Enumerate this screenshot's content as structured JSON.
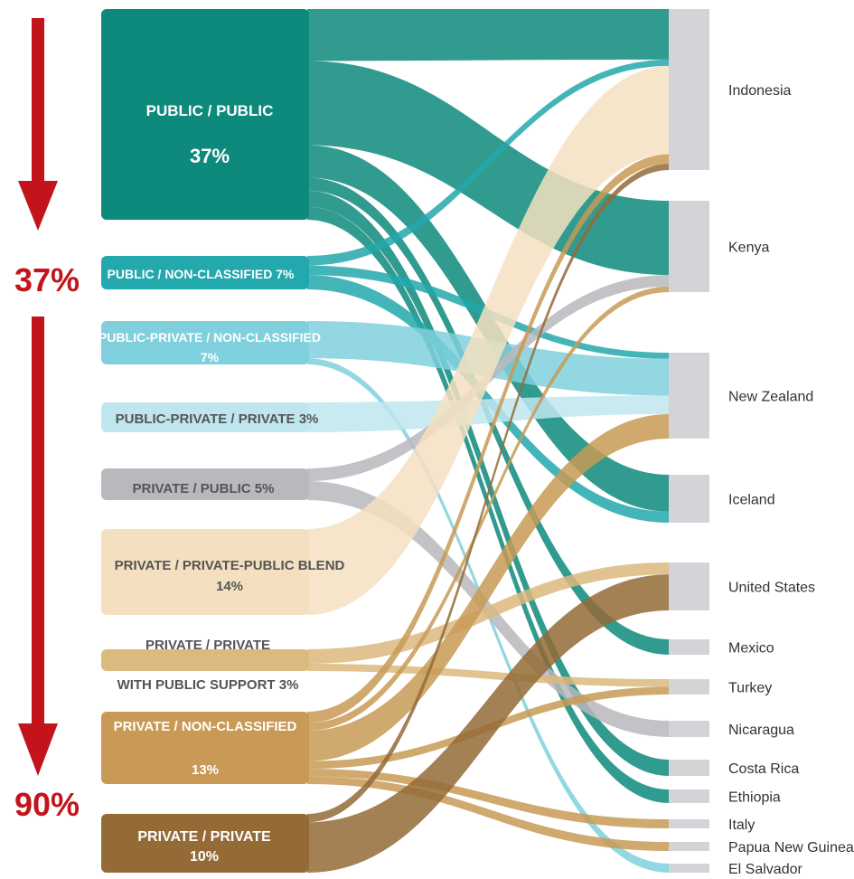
{
  "colors": {
    "public_public": "#0e8a7c",
    "public_nonclassified": "#22a8ad",
    "publicprivate_nonclassified": "#7fd0dc",
    "publicprivate_private": "#bfe6ee",
    "private_public": "#b9b8bd",
    "private_blend": "#f4e0c1",
    "private_private_support": "#dcb97e",
    "private_nonclassified": "#c89a55",
    "private_private": "#946b37",
    "country_bar": "#d4d4d8",
    "country_text": "#333333",
    "arrow": "#c3141b",
    "arrow_text": "#c3141b"
  },
  "arrow_labels": [
    "37%",
    "90%"
  ],
  "chart_data": {
    "type": "sankey",
    "title": "",
    "units": "%",
    "sources": [
      {
        "id": "pp",
        "label_lines": [
          "PUBLIC / PUBLIC",
          "37%"
        ],
        "value": 37,
        "color_key": "public_public"
      },
      {
        "id": "pnc",
        "label_lines": [
          "PUBLIC / NON-CLASSIFIED 7%"
        ],
        "value": 7,
        "color_key": "public_nonclassified"
      },
      {
        "id": "ppnc",
        "label_lines": [
          "PUBLIC-PRIVATE / NON-CLASSIFIED",
          "7%"
        ],
        "value": 7,
        "color_key": "publicprivate_nonclassified"
      },
      {
        "id": "ppp",
        "label_lines": [
          "PUBLIC-PRIVATE / PRIVATE 3%"
        ],
        "value": 3,
        "color_key": "publicprivate_private"
      },
      {
        "id": "prp",
        "label_lines": [
          "PRIVATE / PUBLIC 5%"
        ],
        "value": 5,
        "color_key": "private_public"
      },
      {
        "id": "prb",
        "label_lines": [
          "PRIVATE / PRIVATE-PUBLIC BLEND",
          "14%"
        ],
        "value": 14,
        "color_key": "private_blend"
      },
      {
        "id": "prs",
        "label_lines": [
          "PRIVATE / PRIVATE",
          "WITH PUBLIC SUPPORT 3%"
        ],
        "value": 3,
        "color_key": "private_private_support"
      },
      {
        "id": "prnc",
        "label_lines": [
          "PRIVATE / NON-CLASSIFIED",
          "13%"
        ],
        "value": 13,
        "color_key": "private_nonclassified"
      },
      {
        "id": "prpr",
        "label_lines": [
          "PRIVATE / PRIVATE",
          "10%"
        ],
        "value": 10,
        "color_key": "private_private"
      }
    ],
    "targets": [
      {
        "id": "indonesia",
        "label": "Indonesia"
      },
      {
        "id": "kenya",
        "label": "Kenya"
      },
      {
        "id": "nz",
        "label": "New Zealand"
      },
      {
        "id": "iceland",
        "label": "Iceland"
      },
      {
        "id": "us",
        "label": "United States"
      },
      {
        "id": "mexico",
        "label": "Mexico"
      },
      {
        "id": "turkey",
        "label": "Turkey"
      },
      {
        "id": "nicaragua",
        "label": "Nicaragua"
      },
      {
        "id": "costarica",
        "label": "Costa Rica"
      },
      {
        "id": "ethiopia",
        "label": "Ethiopia"
      },
      {
        "id": "italy",
        "label": "Italy"
      },
      {
        "id": "png",
        "label": "Papua New Guinea"
      },
      {
        "id": "elsalvador",
        "label": "El Salvador"
      }
    ],
    "flows": [
      {
        "source": "pp",
        "target": "indonesia",
        "value": 8
      },
      {
        "source": "pp",
        "target": "kenya",
        "value": 13
      },
      {
        "source": "pp",
        "target": "iceland",
        "value": 5
      },
      {
        "source": "pp",
        "target": "costarica",
        "value": 2.5
      },
      {
        "source": "pp",
        "target": "ethiopia",
        "value": 2
      },
      {
        "source": "pp",
        "target": "mexico",
        "value": 2
      },
      {
        "source": "pnc",
        "target": "indonesia",
        "value": 1
      },
      {
        "source": "pnc",
        "target": "nz",
        "value": 1
      },
      {
        "source": "pnc",
        "target": "iceland",
        "value": 1.5
      },
      {
        "source": "ppnc",
        "target": "nz",
        "value": 6
      },
      {
        "source": "ppnc",
        "target": "elsalvador",
        "value": 1
      },
      {
        "source": "ppp",
        "target": "nz",
        "value": 3
      },
      {
        "source": "prp",
        "target": "kenya",
        "value": 2
      },
      {
        "source": "prp",
        "target": "nicaragua",
        "value": 3
      },
      {
        "source": "prb",
        "target": "indonesia",
        "value": 14
      },
      {
        "source": "prs",
        "target": "us",
        "value": 2
      },
      {
        "source": "prs",
        "target": "turkey",
        "value": 1
      },
      {
        "source": "prnc",
        "target": "indonesia",
        "value": 1.5
      },
      {
        "source": "prnc",
        "target": "nz",
        "value": 4
      },
      {
        "source": "prnc",
        "target": "turkey",
        "value": 1
      },
      {
        "source": "prnc",
        "target": "italy",
        "value": 1
      },
      {
        "source": "prnc",
        "target": "png",
        "value": 1
      },
      {
        "source": "prnc",
        "target": "kenya",
        "value": 1
      },
      {
        "source": "prpr",
        "target": "indonesia",
        "value": 1
      },
      {
        "source": "prpr",
        "target": "us",
        "value": 6
      }
    ]
  }
}
